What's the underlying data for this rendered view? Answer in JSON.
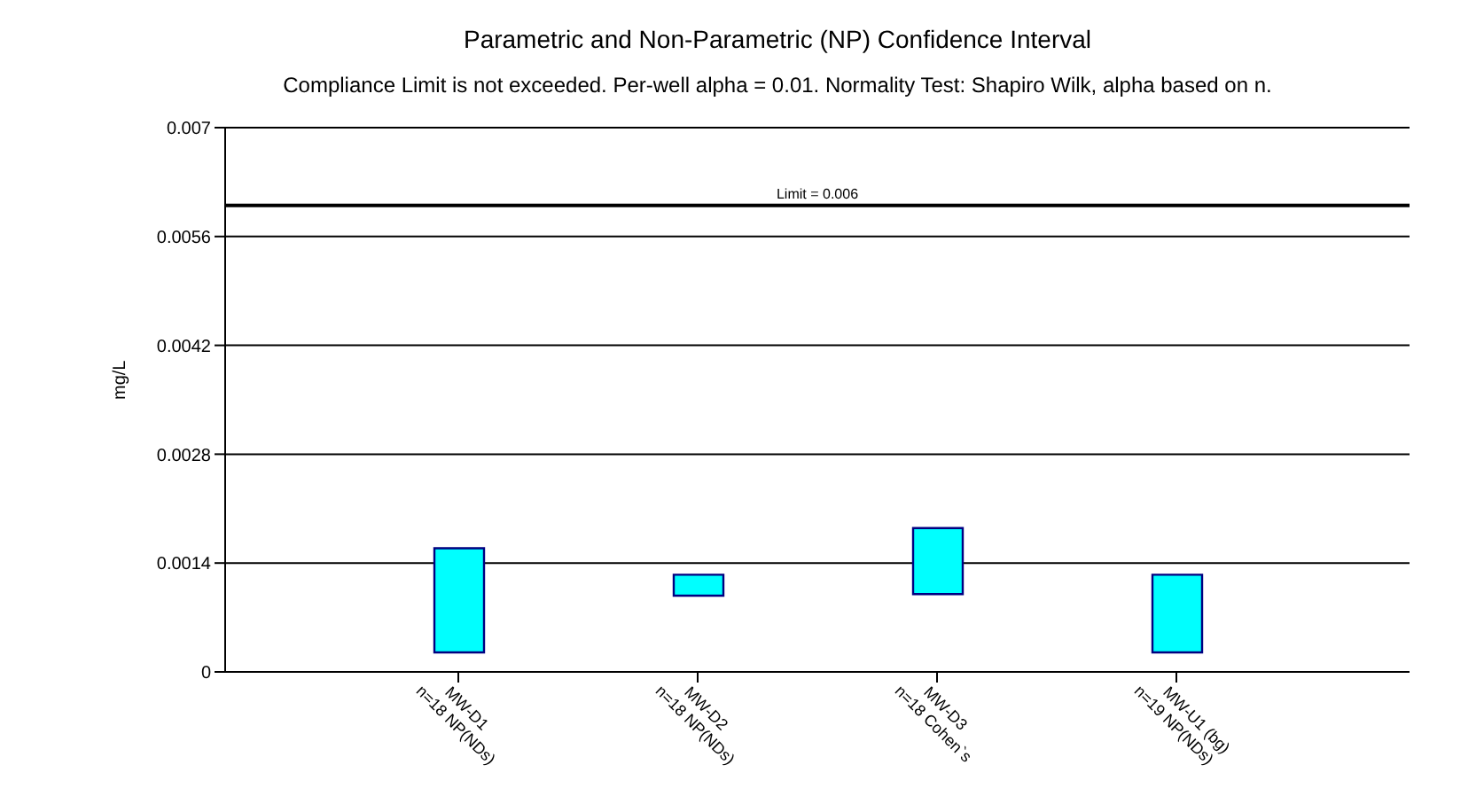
{
  "chart_data": {
    "type": "bar",
    "title": "Parametric and Non-Parametric (NP) Confidence Interval",
    "subtitle": "Compliance Limit is not exceeded.  Per-well alpha = 0.01.  Normality Test: Shapiro Wilk, alpha based on n.",
    "ylabel": "mg/L",
    "categories": [
      "MW-D1\nn=18 NP(NDs)",
      "MW-D2\nn=18 NP(NDs)",
      "MW-D3\nn=18 Cohen`s",
      "MW-U1 (bg)\nn=19 NP(NDs)"
    ],
    "base": [
      0.00025,
      0.00098,
      0.001,
      0.00025
    ],
    "values": [
      0.00134,
      0.00027,
      0.00085,
      0.001
    ],
    "color": "#00ffff",
    "ylim": [
      0,
      0.007
    ],
    "yticks": [
      0,
      0.0014,
      0.0028,
      0.0042,
      0.0056,
      0.007
    ],
    "grid": "y",
    "ref_lines": [
      {
        "axis": "y",
        "value": 0.006,
        "label": "Limit = 0.006",
        "color": "#000000"
      }
    ]
  }
}
